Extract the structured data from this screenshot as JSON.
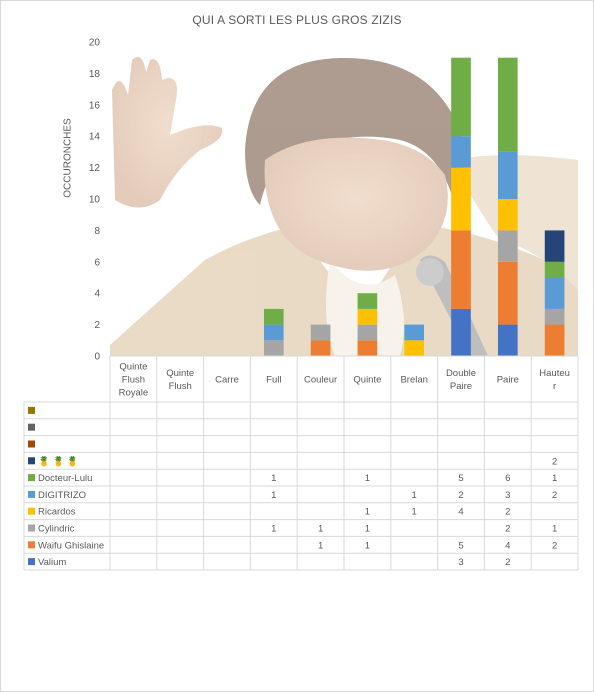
{
  "chart_data": {
    "type": "bar",
    "stacked": true,
    "title": "QUI A SORTI LES PLUS GROS ZIZIS",
    "ylabel": "OCCURONCHES",
    "xlabel": "",
    "ylim": [
      0,
      20
    ],
    "ytick_step": 2,
    "grid": false,
    "legend_placement": "data-table",
    "categories": [
      "Quinte Flush Royale",
      "Quinte Flush",
      "Carre",
      "Full",
      "Couleur",
      "Quinte",
      "Brelan",
      "Double Paire",
      "Paire",
      "Hauteur"
    ],
    "category_lines": [
      [
        "Quinte",
        "Flush",
        "Royale"
      ],
      [
        "Quinte",
        "Flush"
      ],
      [
        "Carre"
      ],
      [
        "Full"
      ],
      [
        "Couleur"
      ],
      [
        "Quinte"
      ],
      [
        "Brelan"
      ],
      [
        "Double",
        "Paire"
      ],
      [
        "Paire"
      ],
      [
        "Hauteu",
        "r"
      ]
    ],
    "series": [
      {
        "name": "Valium",
        "color": "#4472c4",
        "values": [
          null,
          null,
          null,
          null,
          null,
          null,
          null,
          3,
          2,
          null
        ]
      },
      {
        "name": "Waifu Ghislaine",
        "color": "#ed7d31",
        "values": [
          null,
          null,
          null,
          null,
          1,
          1,
          null,
          5,
          4,
          2
        ]
      },
      {
        "name": "Cylindric",
        "color": "#a5a5a5",
        "values": [
          null,
          null,
          null,
          1,
          1,
          1,
          null,
          null,
          2,
          1
        ]
      },
      {
        "name": "Ricardos",
        "color": "#ffc000",
        "values": [
          null,
          null,
          null,
          null,
          null,
          1,
          1,
          4,
          2,
          null
        ]
      },
      {
        "name": "DIGITRIZO",
        "color": "#5b9bd5",
        "values": [
          null,
          null,
          null,
          1,
          null,
          null,
          1,
          2,
          3,
          2
        ]
      },
      {
        "name": "Docteur-Lulu",
        "color": "#70ad47",
        "values": [
          null,
          null,
          null,
          1,
          null,
          1,
          null,
          5,
          6,
          1
        ]
      },
      {
        "name": "🍍 🍍 🍍",
        "color": "#264478",
        "values": [
          null,
          null,
          null,
          null,
          null,
          null,
          null,
          null,
          null,
          2
        ]
      },
      {
        "name": "",
        "color": "#9e480e",
        "values": [
          null,
          null,
          null,
          null,
          null,
          null,
          null,
          null,
          null,
          null
        ]
      },
      {
        "name": "",
        "color": "#636363",
        "values": [
          null,
          null,
          null,
          null,
          null,
          null,
          null,
          null,
          null,
          null
        ]
      },
      {
        "name": "",
        "color": "#997300",
        "values": [
          null,
          null,
          null,
          null,
          null,
          null,
          null,
          null,
          null,
          null
        ]
      }
    ],
    "table_row_order": [
      9,
      8,
      7,
      6,
      5,
      4,
      3,
      2,
      1,
      0
    ],
    "background_image": "photo of smiling man in beige suit raising hand, microphone"
  }
}
